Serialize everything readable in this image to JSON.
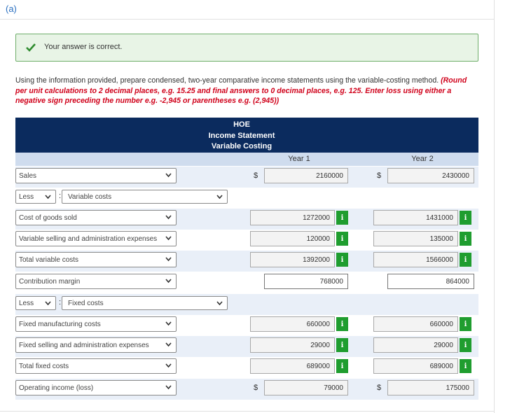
{
  "header": {
    "part": "(a)"
  },
  "feedback": "Your answer is correct.",
  "instructions": {
    "text": "Using the information provided, prepare condensed, two-year comparative income statements using the variable-costing method.",
    "hint": "(Round per unit calculations to 2 decimal places, e.g. 15.25 and final answers to 0 decimal places, e.g. 125. Enter loss using either a negative sign preceding the number e.g. -2,945 or parentheses e.g. (2,945))"
  },
  "table": {
    "company": "HOE",
    "statement": "Income Statement",
    "method": "Variable Costing",
    "columns": [
      "Year 1",
      "Year 2"
    ],
    "info_label": "i",
    "rows": [
      {
        "label": "Sales",
        "currency": "$",
        "values": [
          2160000,
          2430000
        ]
      },
      {
        "prefix": "Less",
        "separator": ":",
        "label": "Variable costs"
      },
      {
        "label": "Cost of goods sold",
        "values": [
          1272000,
          1431000
        ],
        "info": true
      },
      {
        "label": "Variable selling and administration expenses",
        "values": [
          120000,
          135000
        ],
        "info": true
      },
      {
        "label": "Total variable costs",
        "values": [
          1392000,
          1566000
        ],
        "info": true
      },
      {
        "label": "Contribution margin",
        "values": [
          768000,
          864000
        ]
      },
      {
        "prefix": "Less",
        "separator": ":",
        "label": "Fixed costs"
      },
      {
        "label": "Fixed manufacturing costs",
        "values": [
          660000,
          660000
        ],
        "info": true
      },
      {
        "label": "Fixed selling and administration expenses",
        "values": [
          29000,
          29000
        ],
        "info": true
      },
      {
        "label": "Total fixed costs",
        "values": [
          689000,
          689000
        ],
        "info": true
      },
      {
        "label": "Operating income (loss)",
        "currency": "$",
        "values": [
          79000,
          175000
        ]
      }
    ]
  }
}
